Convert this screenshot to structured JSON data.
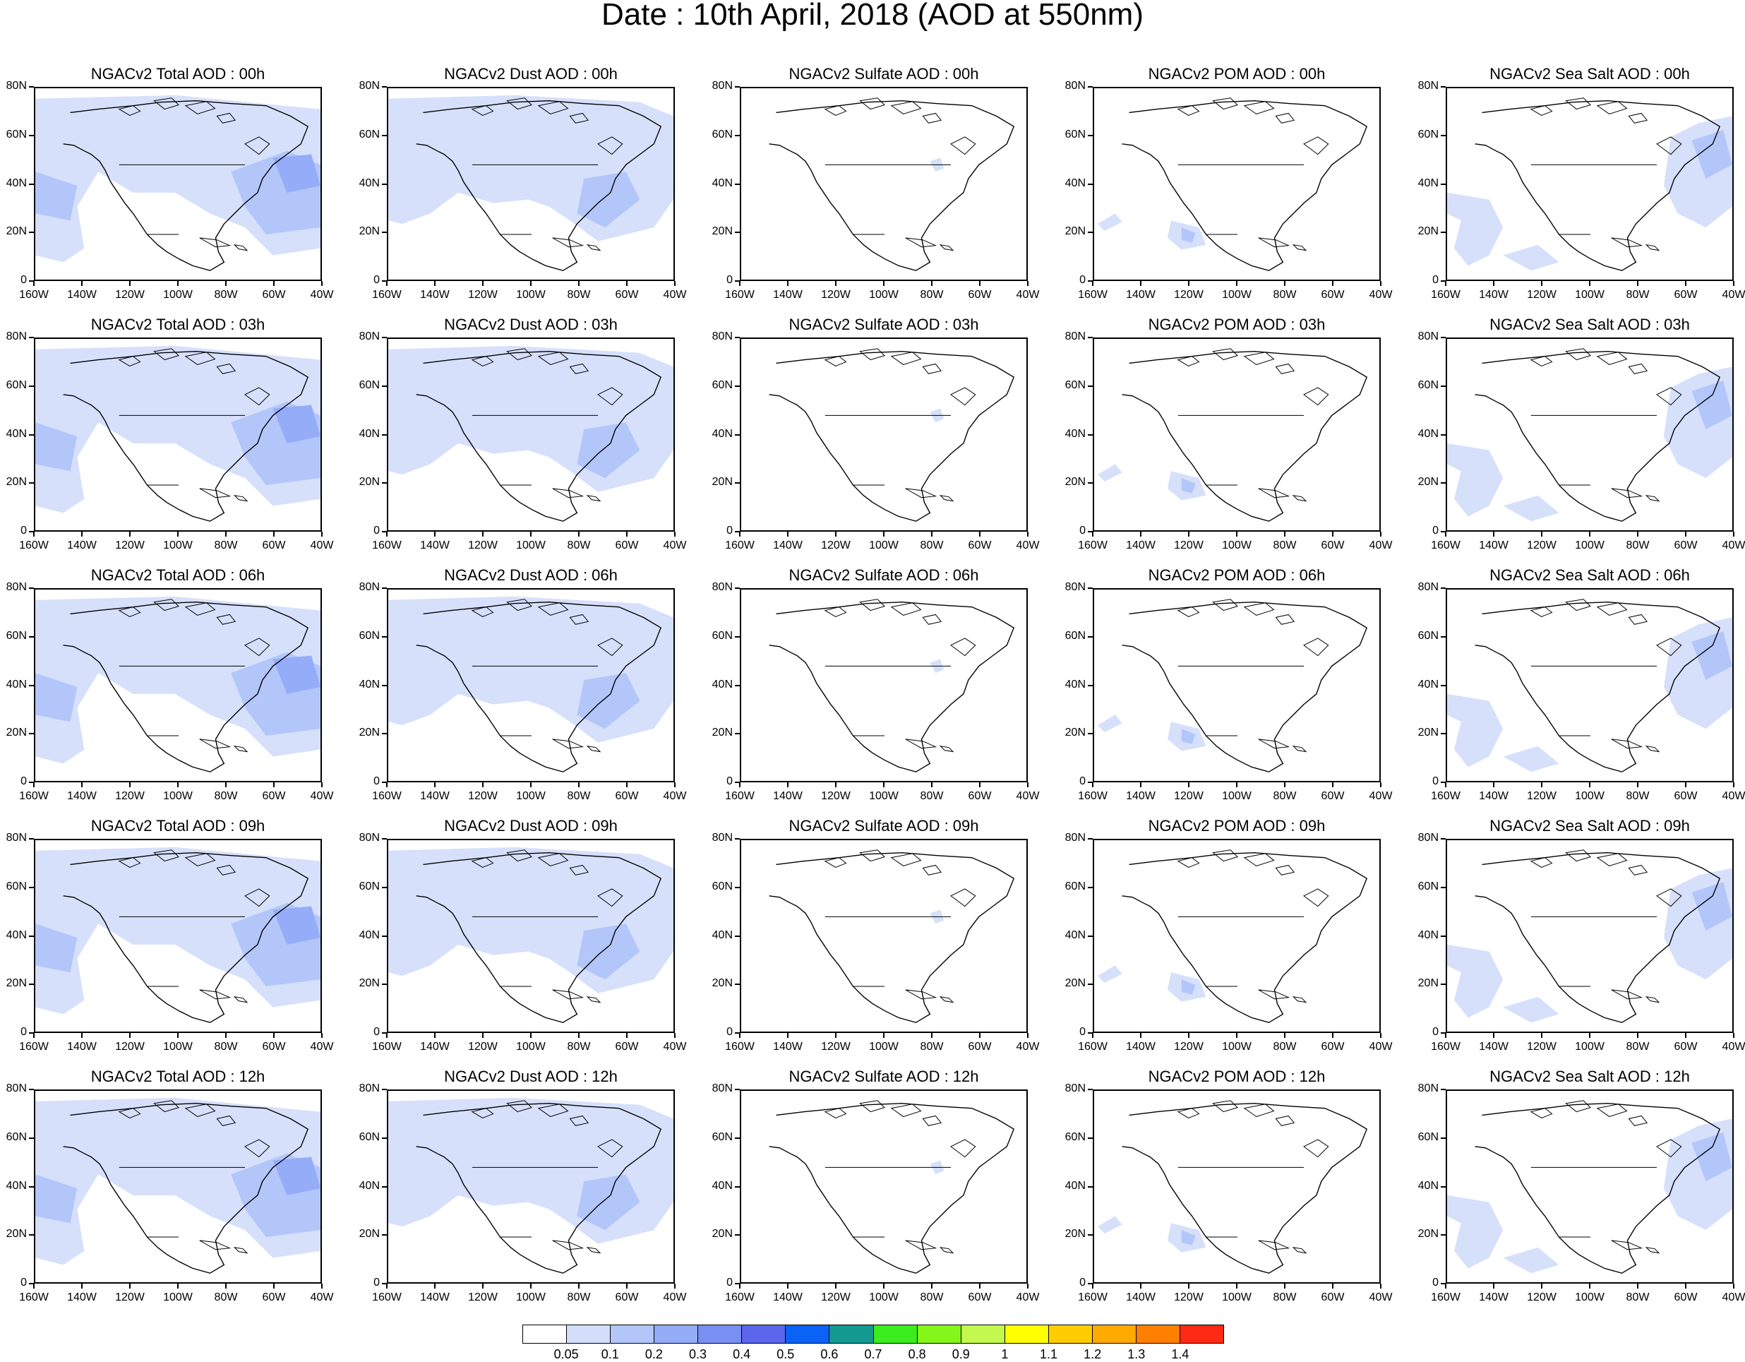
{
  "title": "Date : 10th April, 2018 (AOD at 550nm)",
  "lat_labels": [
    "80N",
    "60N",
    "40N",
    "20N",
    "0"
  ],
  "lon_labels": [
    "160W",
    "140W",
    "120W",
    "100W",
    "80W",
    "60W",
    "40W"
  ],
  "panels": [
    [
      "NGACv2 Total AOD : 00h",
      "NGACv2 Dust AOD : 00h",
      "NGACv2 Sulfate AOD : 00h",
      "NGACv2 POM AOD : 00h",
      "NGACv2 Sea Salt AOD : 00h"
    ],
    [
      "NGACv2 Total AOD : 03h",
      "NGACv2 Dust AOD : 03h",
      "NGACv2 Sulfate AOD : 03h",
      "NGACv2 POM AOD : 03h",
      "NGACv2 Sea Salt AOD : 03h"
    ],
    [
      "NGACv2 Total AOD : 06h",
      "NGACv2 Dust AOD : 06h",
      "NGACv2 Sulfate AOD : 06h",
      "NGACv2 POM AOD : 06h",
      "NGACv2 Sea Salt AOD : 06h"
    ],
    [
      "NGACv2 Total AOD : 09h",
      "NGACv2 Dust AOD : 09h",
      "NGACv2 Sulfate AOD : 09h",
      "NGACv2 POM AOD : 09h",
      "NGACv2 Sea Salt  AOD : 09h"
    ],
    [
      "NGACv2 Total AOD  : 12h",
      "NGACv2 Dust AOD : 12h",
      "NGACv2 Sulfate AOD : 12h",
      "NGACv2 POM  AOD : 12h",
      "NGACv2 Sea Salt  AOD : 12h"
    ]
  ],
  "colorbar": {
    "colors": [
      "#ffffff",
      "#d3defb",
      "#b3c6fa",
      "#95acf8",
      "#7a8ff4",
      "#5c66ec",
      "#0a63f4",
      "#13998f",
      "#3dec1e",
      "#86f51a",
      "#c3f94f",
      "#ffff00",
      "#ffcc00",
      "#ffaa00",
      "#ff7f00",
      "#ff2a14"
    ],
    "labels": [
      "0.05",
      "0.1",
      "0.2",
      "0.3",
      "0.4",
      "0.5",
      "0.6",
      "0.7",
      "0.8",
      "0.9",
      "1",
      "1.1",
      "1.2",
      "1.3",
      "1.4"
    ]
  },
  "aod_fill_colors": {
    "light": "#d6e0fb",
    "medium": "#b3c6fa",
    "strong": "#95acf8"
  }
}
